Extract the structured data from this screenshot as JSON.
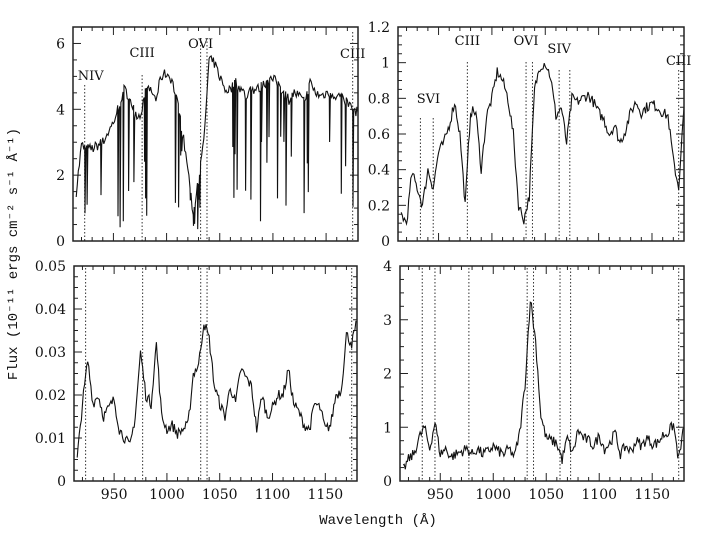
{
  "chart_data": {
    "type": "line",
    "xlabel": "Wavelength (Å)",
    "ylabel": "Flux (10⁻¹¹ ergs cm⁻² s⁻¹ Å⁻¹)",
    "shared_x": [
      915,
      920,
      925,
      930,
      935,
      940,
      945,
      950,
      955,
      960,
      965,
      970,
      975,
      980,
      985,
      990,
      995,
      1000,
      1005,
      1010,
      1015,
      1020,
      1025,
      1030,
      1035,
      1040,
      1045,
      1050,
      1055,
      1060,
      1065,
      1070,
      1075,
      1080,
      1085,
      1090,
      1095,
      1100,
      1105,
      1110,
      1115,
      1120,
      1125,
      1130,
      1135,
      1140,
      1145,
      1150,
      1155,
      1160,
      1165,
      1170,
      1175,
      1180
    ],
    "xlim": [
      912,
      1180
    ],
    "x_ticks": [
      "950",
      "1000",
      "1050",
      "1100",
      "1150"
    ],
    "line_color": "#111111",
    "panels": [
      {
        "position": "top-left",
        "ylim": [
          0,
          6.5
        ],
        "y_ticks": [
          "0",
          "2",
          "4",
          "6"
        ],
        "show_x_tick_labels": false,
        "lines": [
          {
            "label": "NIV",
            "wavelength": 923
          },
          {
            "label": "CIII",
            "wavelength": 977
          },
          {
            "label": "OVI",
            "wavelength": 1032
          },
          {
            "label": "",
            "wavelength": 1038
          },
          {
            "label": "CIII",
            "wavelength": 1175
          }
        ],
        "values": [
          1.5,
          2.9,
          2.8,
          2.8,
          2.9,
          3.0,
          3.3,
          3.6,
          4.1,
          4.6,
          4.4,
          3.9,
          3.8,
          4.5,
          4.6,
          4.3,
          5.0,
          5.1,
          4.9,
          4.2,
          3.3,
          2.2,
          0.8,
          1.8,
          3.0,
          5.5,
          5.4,
          5.0,
          4.6,
          4.6,
          4.8,
          4.6,
          4.4,
          4.6,
          4.6,
          4.7,
          4.9,
          4.9,
          4.8,
          4.5,
          4.3,
          4.5,
          4.4,
          4.2,
          4.8,
          4.5,
          4.4,
          4.5,
          4.5,
          4.4,
          4.4,
          4.2,
          4.0,
          3.9
        ]
      },
      {
        "position": "top-right",
        "ylim": [
          0,
          1.2
        ],
        "y_ticks": [
          "0",
          "0.2",
          "0.4",
          "0.6",
          "0.8",
          "1",
          "1.2"
        ],
        "show_x_tick_labels": false,
        "lines": [
          {
            "label": "SVI",
            "wavelength": 933
          },
          {
            "label": "",
            "wavelength": 945
          },
          {
            "label": "CIII",
            "wavelength": 977
          },
          {
            "label": "OVI",
            "wavelength": 1032
          },
          {
            "label": "",
            "wavelength": 1038
          },
          {
            "label": "SIV",
            "wavelength": 1063
          },
          {
            "label": "",
            "wavelength": 1073
          },
          {
            "label": "CIII",
            "wavelength": 1175
          }
        ],
        "values": [
          0.15,
          0.1,
          0.38,
          0.3,
          0.2,
          0.4,
          0.3,
          0.5,
          0.55,
          0.65,
          0.78,
          0.6,
          0.2,
          0.73,
          0.72,
          0.4,
          0.7,
          0.8,
          0.95,
          0.9,
          0.8,
          0.6,
          0.2,
          0.12,
          0.25,
          0.85,
          0.98,
          1.0,
          0.92,
          0.7,
          0.75,
          0.55,
          0.8,
          0.78,
          0.8,
          0.82,
          0.78,
          0.72,
          0.68,
          0.6,
          0.65,
          0.55,
          0.62,
          0.72,
          0.78,
          0.72,
          0.75,
          0.77,
          0.75,
          0.72,
          0.7,
          0.45,
          0.3,
          0.75
        ]
      },
      {
        "position": "bottom-left",
        "ylim": [
          0,
          0.05
        ],
        "y_ticks": [
          "0",
          "0.01",
          "0.02",
          "0.03",
          "0.04",
          "0.05"
        ],
        "show_x_tick_labels": true,
        "lines": [
          {
            "label": "",
            "wavelength": 923
          },
          {
            "label": "",
            "wavelength": 977
          },
          {
            "label": "",
            "wavelength": 1032
          },
          {
            "label": "",
            "wavelength": 1038
          },
          {
            "label": "",
            "wavelength": 1175
          }
        ],
        "values": [
          0.005,
          0.018,
          0.028,
          0.018,
          0.02,
          0.015,
          0.017,
          0.019,
          0.012,
          0.01,
          0.008,
          0.015,
          0.03,
          0.02,
          0.018,
          0.032,
          0.015,
          0.012,
          0.013,
          0.011,
          0.012,
          0.013,
          0.025,
          0.027,
          0.037,
          0.033,
          0.022,
          0.018,
          0.015,
          0.022,
          0.018,
          0.026,
          0.024,
          0.022,
          0.012,
          0.02,
          0.015,
          0.017,
          0.02,
          0.02,
          0.026,
          0.018,
          0.016,
          0.013,
          0.012,
          0.018,
          0.017,
          0.012,
          0.013,
          0.02,
          0.021,
          0.034,
          0.032,
          0.037
        ]
      },
      {
        "position": "bottom-right",
        "ylim": [
          0,
          4
        ],
        "y_ticks": [
          "0",
          "1",
          "2",
          "3",
          "4"
        ],
        "show_x_tick_labels": true,
        "lines": [
          {
            "label": "",
            "wavelength": 933
          },
          {
            "label": "",
            "wavelength": 945
          },
          {
            "label": "",
            "wavelength": 977
          },
          {
            "label": "",
            "wavelength": 1032
          },
          {
            "label": "",
            "wavelength": 1038
          },
          {
            "label": "",
            "wavelength": 1063
          },
          {
            "label": "",
            "wavelength": 1073
          },
          {
            "label": "",
            "wavelength": 1175
          }
        ],
        "values": [
          0.2,
          0.4,
          0.5,
          0.8,
          1.0,
          0.6,
          1.1,
          0.5,
          0.6,
          0.45,
          0.5,
          0.55,
          0.6,
          0.5,
          0.6,
          0.5,
          0.55,
          0.65,
          0.55,
          0.5,
          0.6,
          0.45,
          0.9,
          1.8,
          3.4,
          2.6,
          1.2,
          0.8,
          0.75,
          0.7,
          0.4,
          0.8,
          0.5,
          0.95,
          0.8,
          0.75,
          0.65,
          0.85,
          0.6,
          0.7,
          0.9,
          0.5,
          0.65,
          0.55,
          0.75,
          0.65,
          0.8,
          0.7,
          0.7,
          0.85,
          0.9,
          1.05,
          0.4,
          1.0
        ]
      }
    ]
  }
}
